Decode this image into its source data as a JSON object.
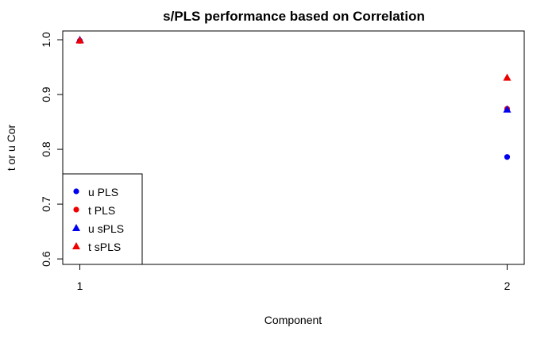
{
  "chart_data": {
    "type": "scatter",
    "title": "s/PLS performance based on Correlation",
    "xlabel": "Component",
    "ylabel": "t or u Cor",
    "xlim": [
      0.96,
      2.04
    ],
    "ylim": [
      0.59,
      1.016
    ],
    "x_ticks": [
      1,
      2
    ],
    "x_tick_labels": [
      "1",
      "2"
    ],
    "y_ticks": [
      0.6,
      0.7,
      0.8,
      0.9,
      1.0
    ],
    "y_tick_labels": [
      "0.6",
      "0.7",
      "0.8",
      "0.9",
      "1.0"
    ],
    "grid": false,
    "legend_position": "bottom-left",
    "series": [
      {
        "name": "u PLS",
        "color": "#0000ee",
        "marker": "circle",
        "x": [
          1,
          2
        ],
        "y": [
          0.998,
          0.786
        ]
      },
      {
        "name": "t PLS",
        "color": "#ee0000",
        "marker": "circle",
        "x": [
          1,
          2
        ],
        "y": [
          0.998,
          0.874
        ]
      },
      {
        "name": "u sPLS",
        "color": "#0000ee",
        "marker": "triangle",
        "x": [
          1,
          2
        ],
        "y": [
          1.0,
          0.873
        ]
      },
      {
        "name": "t sPLS",
        "color": "#ee0000",
        "marker": "triangle",
        "x": [
          1,
          2
        ],
        "y": [
          0.999,
          0.931
        ]
      }
    ]
  }
}
